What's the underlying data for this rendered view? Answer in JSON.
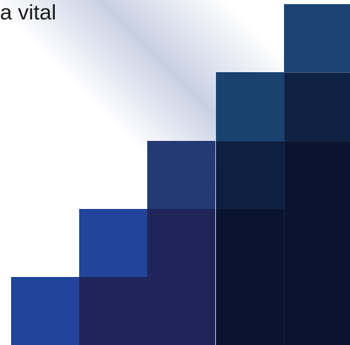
{
  "caption": {
    "text": "a vital"
  },
  "palette": {
    "background": "#ffffff",
    "caption_color": "#1a1a1a",
    "step_top": "#1c4373",
    "step_top_shadow": "#0f2242",
    "step_mid_blue": "#233a75",
    "step_bright_blue": "#22449a",
    "step_navy": "#202559",
    "step_deep": "#0a1430"
  }
}
